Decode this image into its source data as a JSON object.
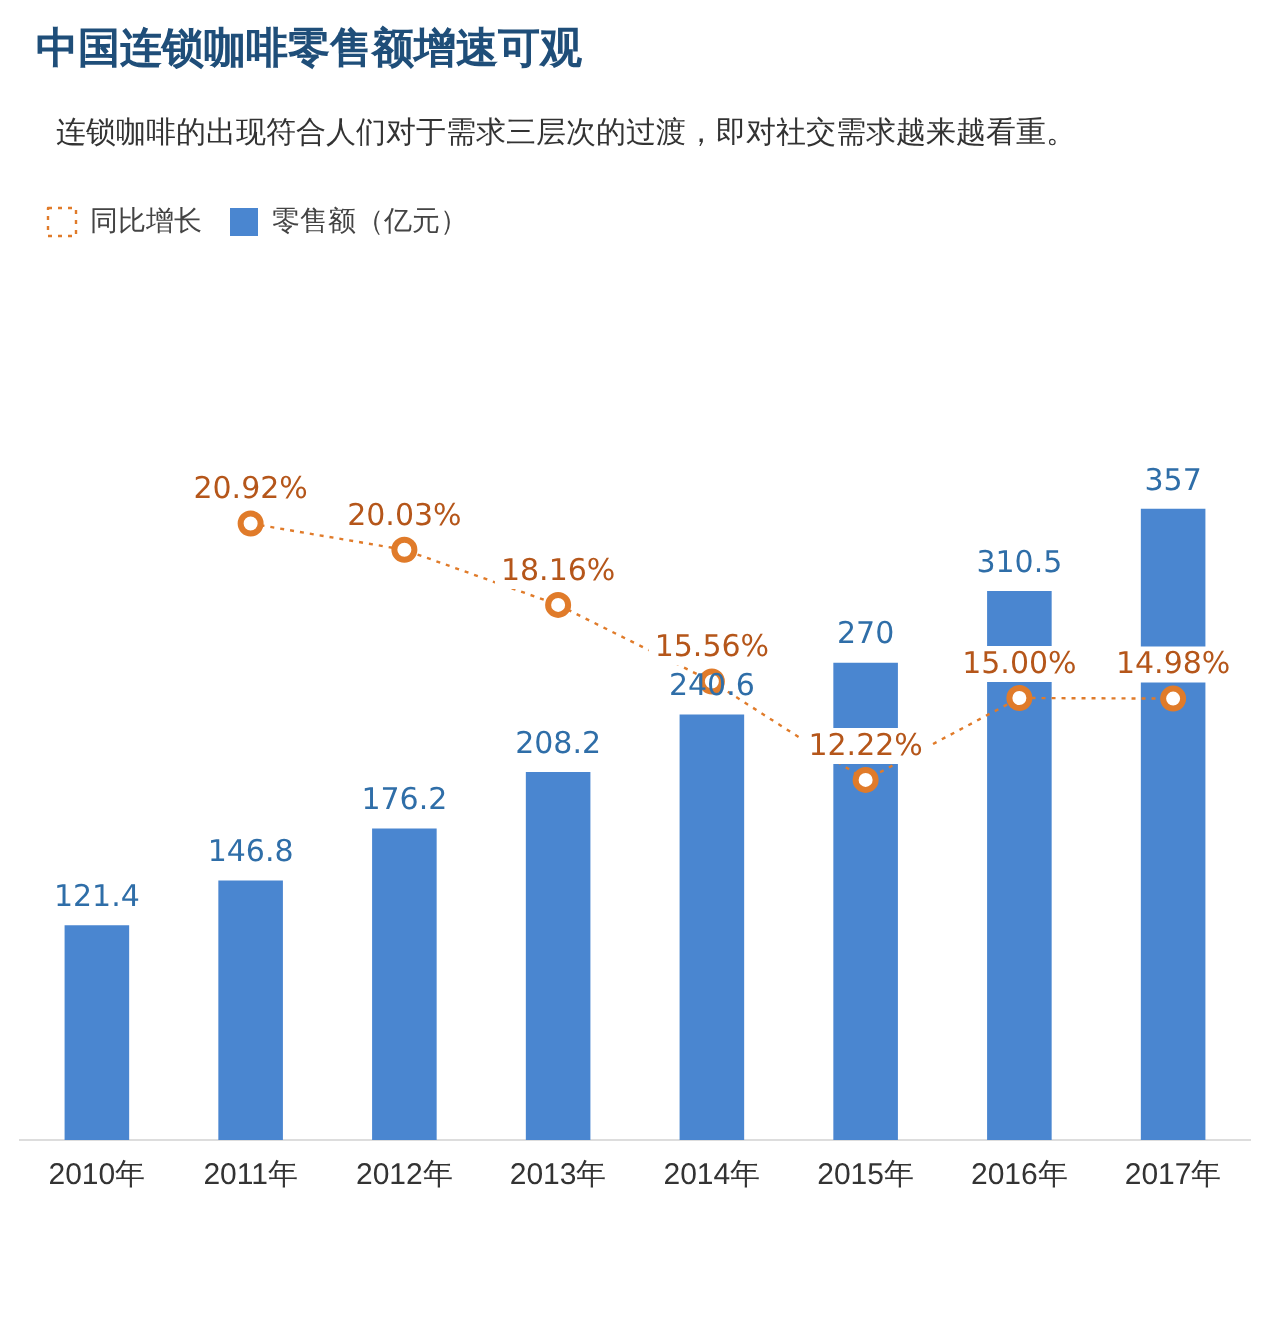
{
  "chart_data": {
    "type": "bar",
    "title": "中国连锁咖啡零售额增速可观",
    "subtitle": "连锁咖啡的出现符合人们对于需求三层次的过渡，即对社交需求越来越看重。",
    "categories": [
      "2010年",
      "2011年",
      "2012年",
      "2013年",
      "2014年",
      "2015年",
      "2016年",
      "2017年"
    ],
    "series": [
      {
        "name": "零售额（亿元）",
        "color": "#4a86d0",
        "values": [
          121.4,
          146.8,
          176.2,
          208.2,
          240.6,
          270,
          310.5,
          357
        ]
      },
      {
        "name": "同比增长",
        "type": "line",
        "axis": "y2",
        "color": "#e07b2a",
        "line_style": "dotted",
        "marker": "circle",
        "values": [
          null,
          20.92,
          20.03,
          18.16,
          15.56,
          12.22,
          15.0,
          14.98
        ],
        "value_labels": [
          null,
          "20.92%",
          "20.03%",
          "18.16%",
          "15.56%",
          "12.22%",
          "15.00%",
          "14.98%"
        ]
      }
    ],
    "data_labels": true,
    "grid": false,
    "legend": "top left",
    "tick_labels": "x"
  }
}
